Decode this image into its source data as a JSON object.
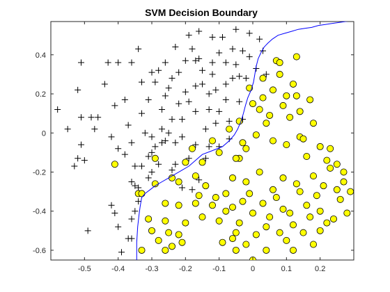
{
  "chart_data": {
    "type": "scatter",
    "title": "SVM Decision Boundary",
    "xlabel": "",
    "ylabel": "",
    "xlim": [
      -0.6,
      0.3
    ],
    "ylim": [
      -0.65,
      0.57
    ],
    "xticks": [
      -0.5,
      -0.4,
      -0.3,
      -0.2,
      -0.1,
      0,
      0.1,
      0.2
    ],
    "xtick_labels": [
      "-0.5",
      "-0.4",
      "-0.3",
      "-0.2",
      "-0.1",
      "0",
      "0.1",
      "0.2"
    ],
    "yticks": [
      -0.6,
      -0.4,
      -0.2,
      0,
      0.2,
      0.4
    ],
    "ytick_labels": [
      "-0.6",
      "-0.4",
      "-0.2",
      "0",
      "0.2",
      "0.4"
    ],
    "grid": false,
    "legend": "none",
    "colors": {
      "positive_marker": "#000000",
      "negative_fill": "#ffff00",
      "negative_edge": "#000000",
      "boundary": "#0000ff",
      "axes": "#262626",
      "background": "#ffffff"
    },
    "series": [
      {
        "marker": "plus",
        "points": [
          [
            -0.58,
            0.12
          ],
          [
            -0.55,
            0.02
          ],
          [
            -0.51,
            0.36
          ],
          [
            -0.52,
            0.22
          ],
          [
            -0.51,
            0.08
          ],
          [
            -0.48,
            0.08
          ],
          [
            -0.47,
            0.02
          ],
          [
            -0.51,
            -0.06
          ],
          [
            -0.53,
            -0.17
          ],
          [
            -0.52,
            -0.13
          ],
          [
            -0.5,
            -0.14
          ],
          [
            -0.49,
            -0.5
          ],
          [
            -0.46,
            0.08
          ],
          [
            -0.43,
            0.36
          ],
          [
            -0.44,
            0.25
          ],
          [
            -0.42,
            -0.02
          ],
          [
            -0.42,
            -0.37
          ],
          [
            -0.41,
            -0.41
          ],
          [
            -0.4,
            -0.48
          ],
          [
            -0.39,
            -0.61
          ],
          [
            -0.4,
            0.36
          ],
          [
            -0.41,
            0.14
          ],
          [
            -0.4,
            -0.08
          ],
          [
            -0.38,
            -0.11
          ],
          [
            -0.37,
            -0.54
          ],
          [
            -0.36,
            -0.54
          ],
          [
            -0.36,
            -0.25
          ],
          [
            -0.36,
            -0.44
          ],
          [
            -0.38,
            0.17
          ],
          [
            -0.37,
            0.04
          ],
          [
            -0.36,
            -0.05
          ],
          [
            -0.35,
            -0.17
          ],
          [
            -0.34,
            -0.28
          ],
          [
            -0.35,
            -0.4
          ],
          [
            -0.36,
            0.36
          ],
          [
            -0.34,
            0.43
          ],
          [
            -0.33,
            0.26
          ],
          [
            -0.33,
            0.1
          ],
          [
            -0.32,
            0.0
          ],
          [
            -0.31,
            -0.12
          ],
          [
            -0.31,
            0.17
          ],
          [
            -0.3,
            0.31
          ],
          [
            -0.29,
            0.26
          ],
          [
            -0.29,
            -0.07
          ],
          [
            -0.3,
            -0.2
          ],
          [
            -0.3,
            -0.02
          ],
          [
            -0.28,
            0.32
          ],
          [
            -0.27,
            0.12
          ],
          [
            -0.27,
            0.02
          ],
          [
            -0.26,
            0.36
          ],
          [
            -0.26,
            0.19
          ],
          [
            -0.26,
            -0.04
          ],
          [
            -0.27,
            -0.05
          ],
          [
            -0.25,
            0.23
          ],
          [
            -0.25,
            0.0
          ],
          [
            -0.24,
            0.28
          ],
          [
            -0.24,
            0.07
          ],
          [
            -0.23,
            0.44
          ],
          [
            -0.23,
            -0.05
          ],
          [
            -0.22,
            0.15
          ],
          [
            -0.22,
            0.31
          ],
          [
            -0.21,
            0.07
          ],
          [
            -0.21,
            -0.02
          ],
          [
            -0.2,
            0.21
          ],
          [
            -0.2,
            0.37
          ],
          [
            -0.19,
            0.5
          ],
          [
            -0.19,
            0.16
          ],
          [
            -0.18,
            0.43
          ],
          [
            -0.17,
            0.37
          ],
          [
            -0.17,
            0.24
          ],
          [
            -0.17,
            0.11
          ],
          [
            -0.17,
            -0.06
          ],
          [
            -0.16,
            0.52
          ],
          [
            -0.16,
            0.38
          ],
          [
            -0.15,
            0.32
          ],
          [
            -0.15,
            -0.15
          ],
          [
            -0.14,
            0.02
          ],
          [
            -0.13,
            0.2
          ],
          [
            -0.13,
            0.12
          ],
          [
            -0.12,
            0.49
          ],
          [
            -0.12,
            0.36
          ],
          [
            -0.12,
            0.3
          ],
          [
            -0.11,
            0.22
          ],
          [
            -0.11,
            0.05
          ],
          [
            -0.1,
            0.41
          ],
          [
            -0.1,
            0.11
          ],
          [
            -0.1,
            -0.07
          ],
          [
            -0.09,
            0.49
          ],
          [
            -0.08,
            0.36
          ],
          [
            -0.08,
            0.25
          ],
          [
            -0.08,
            0.17
          ],
          [
            -0.07,
            0.06
          ],
          [
            -0.07,
            -0.03
          ],
          [
            -0.06,
            0.43
          ],
          [
            -0.06,
            0.28
          ],
          [
            -0.05,
            0.53
          ],
          [
            -0.05,
            0.35
          ],
          [
            -0.04,
            0.29
          ],
          [
            -0.04,
            0.16
          ],
          [
            -0.03,
            0.07
          ],
          [
            -0.03,
            0.42
          ],
          [
            -0.02,
            0.28
          ],
          [
            -0.01,
            0.51
          ],
          [
            -0.01,
            0.39
          ],
          [
            0.01,
            0.33
          ],
          [
            0.02,
            0.48
          ],
          [
            0.03,
            0.42
          ],
          [
            0.04,
            0.3
          ],
          [
            -0.15,
            0.25
          ],
          [
            -0.13,
            -0.07
          ],
          [
            -0.19,
            -0.13
          ],
          [
            -0.23,
            -0.16
          ],
          [
            -0.24,
            -0.19
          ],
          [
            -0.21,
            -0.28
          ],
          [
            -0.18,
            -0.29
          ],
          [
            -0.14,
            -0.13
          ],
          [
            -0.16,
            -0.24
          ],
          [
            -0.33,
            -0.17
          ],
          [
            -0.35,
            -0.27
          ],
          [
            -0.34,
            -0.35
          ],
          [
            -0.31,
            -0.23
          ],
          [
            -0.3,
            -0.1
          ],
          [
            -0.28,
            -0.16
          ]
        ]
      },
      {
        "marker": "circle",
        "points": [
          [
            -0.41,
            -0.16
          ],
          [
            -0.34,
            -0.31
          ],
          [
            -0.33,
            -0.31
          ],
          [
            -0.29,
            -0.26
          ],
          [
            -0.29,
            -0.13
          ],
          [
            -0.26,
            -0.45
          ],
          [
            -0.26,
            -0.36
          ],
          [
            -0.25,
            -0.51
          ],
          [
            -0.24,
            -0.23
          ],
          [
            -0.22,
            -0.37
          ],
          [
            -0.22,
            -0.25
          ],
          [
            -0.21,
            -0.56
          ],
          [
            -0.2,
            -0.46
          ],
          [
            -0.17,
            -0.36
          ],
          [
            -0.17,
            -0.22
          ],
          [
            -0.15,
            -0.15
          ],
          [
            -0.15,
            -0.43
          ],
          [
            -0.12,
            -0.37
          ],
          [
            -0.11,
            -0.33
          ],
          [
            -0.1,
            -0.45
          ],
          [
            -0.09,
            -0.56
          ],
          [
            -0.08,
            -0.4
          ],
          [
            -0.06,
            -0.38
          ],
          [
            -0.06,
            -0.54
          ],
          [
            -0.05,
            -0.51
          ],
          [
            -0.04,
            -0.46
          ],
          [
            -0.04,
            -0.13
          ],
          [
            -0.03,
            -0.35
          ],
          [
            -0.02,
            -0.57
          ],
          [
            -0.02,
            -0.25
          ],
          [
            -0.01,
            -0.31
          ],
          [
            0.0,
            -0.41
          ],
          [
            0.01,
            -0.52
          ],
          [
            0.02,
            -0.2
          ],
          [
            0.03,
            -0.36
          ],
          [
            0.04,
            -0.48
          ],
          [
            0.04,
            -0.6
          ],
          [
            0.05,
            -0.43
          ],
          [
            0.06,
            -0.29
          ],
          [
            0.07,
            -0.33
          ],
          [
            0.08,
            -0.51
          ],
          [
            0.09,
            -0.23
          ],
          [
            0.09,
            -0.39
          ],
          [
            0.1,
            -0.06
          ],
          [
            0.11,
            -0.41
          ],
          [
            0.12,
            -0.47
          ],
          [
            0.13,
            -0.26
          ],
          [
            0.14,
            -0.3
          ],
          [
            0.15,
            -0.51
          ],
          [
            0.16,
            -0.37
          ],
          [
            0.17,
            -0.43
          ],
          [
            0.18,
            -0.22
          ],
          [
            0.19,
            -0.32
          ],
          [
            0.2,
            -0.4
          ],
          [
            0.21,
            -0.27
          ],
          [
            0.22,
            -0.46
          ],
          [
            0.23,
            -0.18
          ],
          [
            0.25,
            -0.29
          ],
          [
            0.26,
            -0.34
          ],
          [
            0.27,
            -0.2
          ],
          [
            0.28,
            -0.41
          ],
          [
            0.29,
            -0.3
          ],
          [
            0.27,
            -0.25
          ],
          [
            0.25,
            -0.16
          ],
          [
            0.23,
            -0.08
          ],
          [
            0.2,
            -0.07
          ],
          [
            0.18,
            0.05
          ],
          [
            0.16,
            -0.12
          ],
          [
            0.14,
            -0.02
          ],
          [
            0.14,
            0.11
          ],
          [
            0.13,
            0.19
          ],
          [
            0.12,
            0.25
          ],
          [
            0.11,
            0.08
          ],
          [
            0.1,
            0.19
          ],
          [
            0.09,
            0.14
          ],
          [
            0.08,
            0.3
          ],
          [
            0.07,
            0.37
          ],
          [
            0.06,
            0.22
          ],
          [
            0.05,
            0.09
          ],
          [
            0.04,
            0.05
          ],
          [
            0.03,
            0.18
          ],
          [
            0.02,
            0.12
          ],
          [
            0.01,
            -0.01
          ],
          [
            0.0,
            0.15
          ],
          [
            -0.01,
            0.23
          ],
          [
            -0.02,
            -0.08
          ],
          [
            -0.03,
            -0.05
          ],
          [
            -0.04,
            0.06
          ],
          [
            -0.05,
            -0.13
          ],
          [
            -0.06,
            -0.23
          ],
          [
            -0.08,
            -0.31
          ],
          [
            -0.1,
            -0.1
          ],
          [
            -0.12,
            -0.04
          ],
          [
            -0.14,
            -0.27
          ],
          [
            -0.16,
            -0.32
          ],
          [
            -0.18,
            -0.08
          ],
          [
            -0.2,
            -0.15
          ],
          [
            -0.22,
            -0.52
          ],
          [
            -0.24,
            -0.58
          ],
          [
            -0.26,
            -0.6
          ],
          [
            -0.28,
            -0.55
          ],
          [
            -0.3,
            -0.5
          ],
          [
            -0.31,
            -0.44
          ],
          [
            -0.33,
            -0.6
          ],
          [
            -0.07,
            0.02
          ],
          [
            0.06,
            -0.04
          ],
          [
            0.15,
            -0.03
          ],
          [
            0.22,
            -0.14
          ],
          [
            0.24,
            -0.44
          ],
          [
            0.12,
            -0.6
          ],
          [
            0.0,
            -0.65
          ],
          [
            -0.05,
            -0.6
          ],
          [
            0.1,
            -0.55
          ],
          [
            0.18,
            -0.57
          ],
          [
            0.2,
            -0.5
          ],
          [
            0.13,
            0.39
          ],
          [
            0.17,
            0.17
          ],
          [
            0.08,
            0.36
          ],
          [
            0.03,
            0.28
          ]
        ]
      }
    ],
    "decision_boundary": [
      [
        -0.345,
        -0.65
      ],
      [
        -0.345,
        -0.56
      ],
      [
        -0.342,
        -0.48
      ],
      [
        -0.338,
        -0.42
      ],
      [
        -0.335,
        -0.38
      ],
      [
        -0.332,
        -0.35
      ],
      [
        -0.33,
        -0.33
      ],
      [
        -0.32,
        -0.31
      ],
      [
        -0.305,
        -0.29
      ],
      [
        -0.29,
        -0.27
      ],
      [
        -0.27,
        -0.25
      ],
      [
        -0.25,
        -0.23
      ],
      [
        -0.23,
        -0.21
      ],
      [
        -0.21,
        -0.19
      ],
      [
        -0.19,
        -0.17
      ],
      [
        -0.17,
        -0.14
      ],
      [
        -0.15,
        -0.11
      ],
      [
        -0.12,
        -0.09
      ],
      [
        -0.09,
        -0.07
      ],
      [
        -0.07,
        -0.04
      ],
      [
        -0.055,
        -0.01
      ],
      [
        -0.045,
        0.02
      ],
      [
        -0.035,
        0.06
      ],
      [
        -0.028,
        0.1
      ],
      [
        -0.022,
        0.14
      ],
      [
        -0.015,
        0.18
      ],
      [
        -0.005,
        0.22
      ],
      [
        0.002,
        0.26
      ],
      [
        0.006,
        0.3
      ],
      [
        0.01,
        0.34
      ],
      [
        0.016,
        0.38
      ],
      [
        0.024,
        0.41
      ],
      [
        0.034,
        0.44
      ],
      [
        0.045,
        0.46
      ],
      [
        0.058,
        0.48
      ],
      [
        0.075,
        0.5
      ],
      [
        0.095,
        0.51
      ],
      [
        0.115,
        0.52
      ],
      [
        0.135,
        0.53
      ],
      [
        0.155,
        0.535
      ],
      [
        0.175,
        0.54
      ],
      [
        0.195,
        0.55
      ],
      [
        0.215,
        0.555
      ],
      [
        0.235,
        0.56
      ],
      [
        0.255,
        0.565
      ],
      [
        0.275,
        0.57
      ],
      [
        0.3,
        0.575
      ]
    ]
  }
}
